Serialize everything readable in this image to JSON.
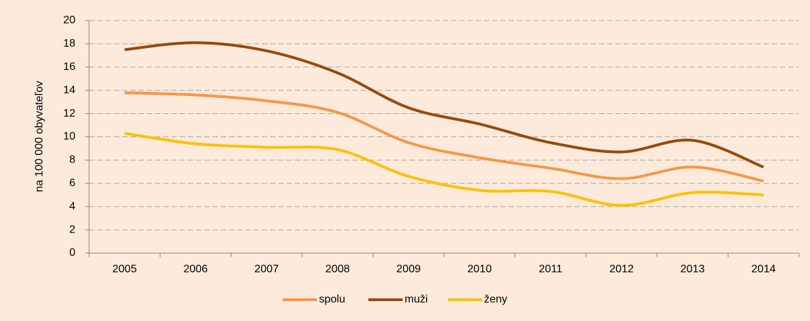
{
  "chart_data": {
    "type": "line",
    "y_label": "na 100 000 obyvateľov",
    "categories": [
      "2005",
      "2006",
      "2007",
      "2008",
      "2009",
      "2010",
      "2011",
      "2012",
      "2013",
      "2014"
    ],
    "series": [
      {
        "name": "spolu",
        "color": "#f79646",
        "values": [
          13.8,
          13.6,
          13.1,
          12.1,
          9.5,
          8.2,
          7.3,
          6.4,
          7.4,
          6.2
        ]
      },
      {
        "name": "muži",
        "color": "#984807",
        "values": [
          17.5,
          18.1,
          17.4,
          15.5,
          12.5,
          11.1,
          9.5,
          8.7,
          9.7,
          7.4
        ]
      },
      {
        "name": "ženy",
        "color": "#ffc000",
        "values": [
          10.3,
          9.4,
          9.1,
          8.9,
          6.6,
          5.4,
          5.3,
          4.1,
          5.2,
          5.0
        ]
      }
    ],
    "ylim": [
      0,
      20
    ],
    "yticks": [
      0,
      2,
      4,
      6,
      8,
      10,
      12,
      14,
      16,
      18,
      20
    ],
    "grid": true,
    "legend": "bottom"
  }
}
